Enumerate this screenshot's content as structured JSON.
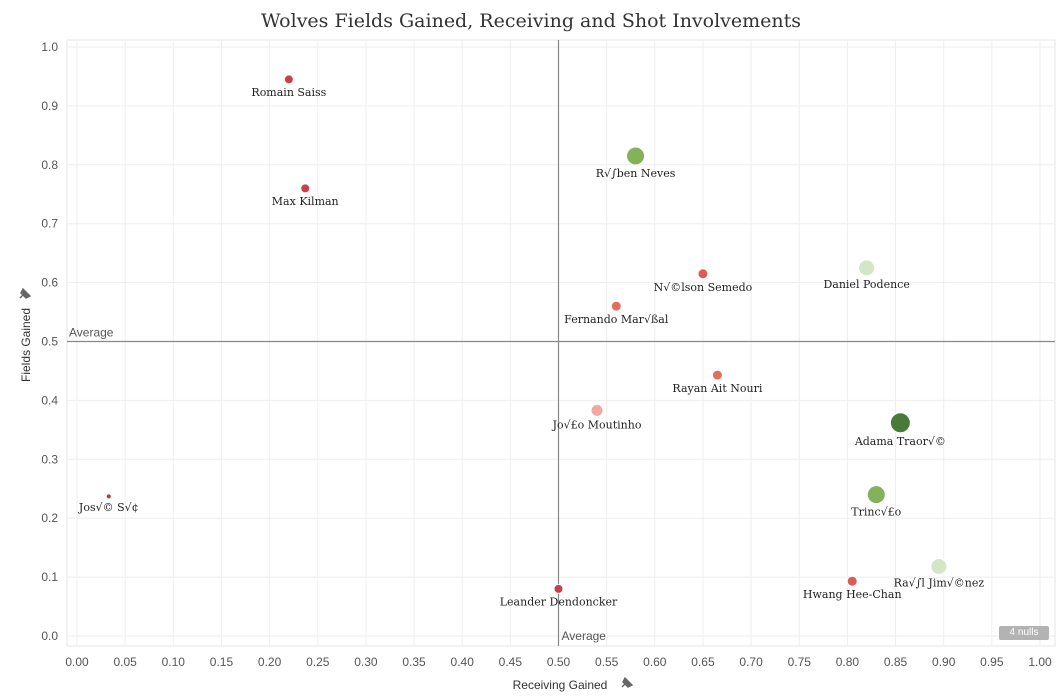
{
  "chart_data": {
    "type": "scatter",
    "title": "Wolves Fields Gained, Receiving and Shot Involvements",
    "xlabel": "Receiving Gained",
    "ylabel": "Fields Gained",
    "xlim": [
      0,
      1
    ],
    "ylim": [
      0,
      1
    ],
    "x_ticks": [
      "0.00",
      "0.05",
      "0.10",
      "0.15",
      "0.20",
      "0.25",
      "0.30",
      "0.35",
      "0.40",
      "0.45",
      "0.50",
      "0.55",
      "0.60",
      "0.65",
      "0.70",
      "0.75",
      "0.80",
      "0.85",
      "0.90",
      "0.95",
      "1.00"
    ],
    "y_ticks": [
      "0.0",
      "0.1",
      "0.2",
      "0.3",
      "0.4",
      "0.5",
      "0.6",
      "0.7",
      "0.8",
      "0.9",
      "1.0"
    ],
    "reference_lines": [
      {
        "axis": "x",
        "value": 0.5,
        "label": "Average"
      },
      {
        "axis": "y",
        "value": 0.5,
        "label": "Average"
      }
    ],
    "nulls_indicator": "4 nulls",
    "points": [
      {
        "label": "Romain Saiss",
        "x": 0.22,
        "y": 0.945,
        "color": "#c8414a",
        "size": 4.5
      },
      {
        "label": "Max Kilman",
        "x": 0.237,
        "y": 0.76,
        "color": "#c8414a",
        "size": 4.5
      },
      {
        "label": "R√∫ben Neves",
        "x": 0.58,
        "y": 0.815,
        "color": "#84b25a",
        "size": 9
      },
      {
        "label": "N√©lson Semedo",
        "x": 0.65,
        "y": 0.615,
        "color": "#dd5a55",
        "size": 5
      },
      {
        "label": "Daniel Podence",
        "x": 0.82,
        "y": 0.625,
        "color": "#d4e6c6",
        "size": 8
      },
      {
        "label": "Fernando Mar√ßal",
        "x": 0.56,
        "y": 0.56,
        "color": "#e0705e",
        "size": 5
      },
      {
        "label": "Rayan Ait Nouri",
        "x": 0.665,
        "y": 0.443,
        "color": "#e0705e",
        "size": 5
      },
      {
        "label": "Jo√£o Moutinho",
        "x": 0.54,
        "y": 0.383,
        "color": "#f0a8a0",
        "size": 6
      },
      {
        "label": "Adama Traor√©",
        "x": 0.855,
        "y": 0.362,
        "color": "#4a7a3a",
        "size": 10
      },
      {
        "label": "Jos√© S√¢",
        "x": 0.033,
        "y": 0.237,
        "color": "#b33a3a",
        "size": 2.5
      },
      {
        "label": "Trinc√£o",
        "x": 0.83,
        "y": 0.24,
        "color": "#84b25a",
        "size": 9
      },
      {
        "label": "Ra√∫l Jim√©nez",
        "x": 0.895,
        "y": 0.118,
        "color": "#d4e6c6",
        "size": 8
      },
      {
        "label": "Hwang Hee-Chan",
        "x": 0.805,
        "y": 0.093,
        "color": "#dd5a55",
        "size": 5
      },
      {
        "label": "Leander Dendoncker",
        "x": 0.5,
        "y": 0.08,
        "color": "#c8414a",
        "size": 4.5
      }
    ]
  }
}
